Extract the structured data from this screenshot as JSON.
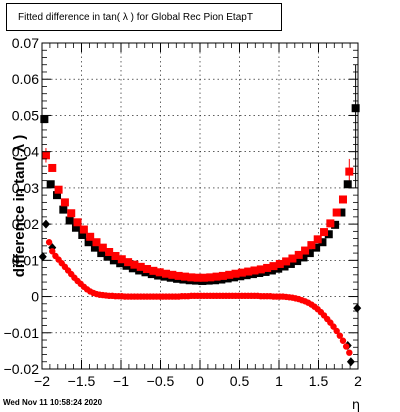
{
  "chart_data": {
    "type": "scatter",
    "title": "Fitted difference in tan( λ ) for Global Rec Pion EtapT",
    "xlabel": "η",
    "ylabel": "difference in tan( λ )",
    "xlim": [
      -2,
      2
    ],
    "ylim": [
      -0.02,
      0.07
    ],
    "x_ticks": [
      -2,
      -1.5,
      -1,
      -0.5,
      0,
      0.5,
      1,
      1.5,
      2
    ],
    "x_tick_labels": [
      "−2",
      "−1.5",
      "−1",
      "−0.5",
      "0",
      "0.5",
      "1",
      "1.5",
      "2"
    ],
    "y_ticks": [
      -0.02,
      -0.01,
      0,
      0.01,
      0.02,
      0.03,
      0.04,
      0.05,
      0.06,
      0.07
    ],
    "y_tick_labels": [
      "−0.02",
      "−0.01",
      "0",
      "0.01",
      "0.02",
      "0.03",
      "0.04",
      "0.05",
      "0.06",
      "0.07"
    ],
    "grid": true,
    "series": [
      {
        "marker": "square",
        "color": "#000000",
        "x": [
          -1.97,
          -1.89,
          -1.81,
          -1.73,
          -1.65,
          -1.57,
          -1.49,
          -1.41,
          -1.33,
          -1.25,
          -1.17,
          -1.09,
          -1.01,
          -0.93,
          -0.85,
          -0.77,
          -0.69,
          -0.61,
          -0.53,
          -0.45,
          -0.37,
          -0.29,
          -0.21,
          -0.13,
          -0.05,
          0.03,
          0.11,
          0.19,
          0.27,
          0.35,
          0.43,
          0.51,
          0.59,
          0.67,
          0.75,
          0.83,
          0.91,
          0.99,
          1.07,
          1.15,
          1.23,
          1.31,
          1.39,
          1.47,
          1.55,
          1.63,
          1.71,
          1.79,
          1.87,
          1.97
        ],
        "y": [
          0.049,
          0.031,
          0.028,
          0.024,
          0.021,
          0.019,
          0.017,
          0.015,
          0.0135,
          0.012,
          0.011,
          0.01,
          0.0092,
          0.0085,
          0.0078,
          0.0072,
          0.0067,
          0.0062,
          0.0058,
          0.0055,
          0.0052,
          0.0049,
          0.0047,
          0.0045,
          0.0044,
          0.0043,
          0.0044,
          0.0045,
          0.0047,
          0.005,
          0.0053,
          0.0056,
          0.0059,
          0.0062,
          0.0065,
          0.0068,
          0.0072,
          0.0077,
          0.0083,
          0.009,
          0.0098,
          0.0108,
          0.012,
          0.0135,
          0.015,
          0.0172,
          0.0198,
          0.0232,
          0.031,
          0.052
        ]
      },
      {
        "marker": "square",
        "color": "#ff0000",
        "x": [
          -1.95,
          -1.87,
          -1.79,
          -1.71,
          -1.63,
          -1.55,
          -1.47,
          -1.39,
          -1.31,
          -1.23,
          -1.15,
          -1.07,
          -0.99,
          -0.91,
          -0.83,
          -0.75,
          -0.67,
          -0.59,
          -0.51,
          -0.43,
          -0.35,
          -0.27,
          -0.19,
          -0.11,
          -0.03,
          0.05,
          0.13,
          0.21,
          0.29,
          0.37,
          0.45,
          0.53,
          0.61,
          0.69,
          0.77,
          0.85,
          0.93,
          1.01,
          1.09,
          1.17,
          1.25,
          1.33,
          1.41,
          1.49,
          1.57,
          1.65,
          1.73,
          1.81,
          1.89
        ],
        "y": [
          0.039,
          0.0355,
          0.0295,
          0.026,
          0.023,
          0.0205,
          0.0185,
          0.0165,
          0.015,
          0.0135,
          0.0123,
          0.0112,
          0.0103,
          0.0095,
          0.0088,
          0.0082,
          0.0076,
          0.0071,
          0.0067,
          0.0063,
          0.006,
          0.0057,
          0.0055,
          0.0053,
          0.0052,
          0.0052,
          0.0053,
          0.0055,
          0.0057,
          0.006,
          0.0063,
          0.0066,
          0.0069,
          0.0072,
          0.0075,
          0.0079,
          0.0084,
          0.009,
          0.0097,
          0.0105,
          0.0115,
          0.0127,
          0.0142,
          0.0158,
          0.0178,
          0.0202,
          0.0232,
          0.0268,
          0.0345
        ]
      },
      {
        "marker": "diamond",
        "color": "#000000",
        "x": [
          -1.99,
          -1.95,
          -1.87,
          1.87,
          1.91,
          1.99
        ],
        "y": [
          0.011,
          0.02,
          0.0135,
          -0.0135,
          -0.018,
          -0.0032
        ]
      },
      {
        "marker": "circle",
        "color": "#ff0000",
        "x": [
          -1.91,
          -1.87,
          -1.83,
          -1.79,
          -1.75,
          -1.71,
          -1.67,
          -1.63,
          -1.59,
          -1.55,
          -1.51,
          -1.47,
          -1.43,
          -1.39,
          -1.35,
          -1.31,
          -1.27,
          -1.23,
          -1.19,
          -1.15,
          -1.11,
          -1.07,
          -1.03,
          -0.99,
          -0.95,
          -0.91,
          -0.87,
          -0.83,
          -0.79,
          -0.75,
          -0.71,
          -0.67,
          -0.63,
          -0.59,
          -0.55,
          -0.51,
          -0.47,
          -0.43,
          -0.39,
          -0.35,
          -0.31,
          -0.27,
          -0.23,
          -0.19,
          -0.15,
          -0.11,
          -0.07,
          -0.03,
          0.01,
          0.05,
          0.09,
          0.13,
          0.17,
          0.21,
          0.25,
          0.29,
          0.33,
          0.37,
          0.41,
          0.45,
          0.49,
          0.53,
          0.57,
          0.61,
          0.65,
          0.69,
          0.73,
          0.77,
          0.81,
          0.85,
          0.89,
          0.93,
          0.97,
          1.01,
          1.05,
          1.09,
          1.13,
          1.17,
          1.21,
          1.25,
          1.29,
          1.33,
          1.37,
          1.41,
          1.45,
          1.49,
          1.53,
          1.57,
          1.61,
          1.65,
          1.69,
          1.73,
          1.77,
          1.81,
          1.85,
          1.89
        ],
        "y": [
          0.015,
          0.0125,
          0.0112,
          0.0102,
          0.0092,
          0.0082,
          0.0072,
          0.0062,
          0.0052,
          0.0043,
          0.0035,
          0.0027,
          0.002,
          0.0014,
          0.001,
          0.0007,
          0.0005,
          0.0004,
          0.0003,
          0.0002,
          0.0002,
          0.0001,
          0.0001,
          0.0001,
          0.0,
          0.0,
          0.0,
          0.0,
          0.0,
          0.0,
          0.0,
          0.0,
          0.0,
          0.0,
          0.0,
          0.0,
          0.0,
          0.0,
          0.0,
          0.0,
          0.0,
          0.0,
          0.0001,
          0.0001,
          0.0001,
          0.0002,
          0.0002,
          0.0002,
          0.0002,
          0.0002,
          0.0002,
          0.0002,
          0.0002,
          0.0002,
          0.0002,
          0.0002,
          0.0002,
          0.0002,
          0.0002,
          0.0002,
          0.0002,
          0.0002,
          0.0002,
          0.0002,
          0.0002,
          0.0002,
          0.0002,
          0.0001,
          0.0001,
          0.0001,
          0.0001,
          0.0,
          0.0,
          0.0,
          0.0,
          -0.0001,
          -0.0002,
          -0.0003,
          -0.0005,
          -0.0007,
          -0.001,
          -0.0013,
          -0.0017,
          -0.0022,
          -0.0028,
          -0.0035,
          -0.0043,
          -0.0052,
          -0.0062,
          -0.0072,
          -0.0083,
          -0.0095,
          -0.0108,
          -0.0122,
          -0.0138,
          -0.0155
        ]
      }
    ],
    "error_bars": [
      {
        "x": 1.97,
        "y_low": 0.03,
        "y_high": 0.064,
        "color": "#000000"
      },
      {
        "x": 1.89,
        "y_low": 0.031,
        "y_high": 0.038,
        "color": "#ff0000"
      },
      {
        "x": -1.95,
        "y_low": 0.037,
        "y_high": 0.041,
        "color": "#ff0000"
      }
    ]
  },
  "footer": {
    "timestamp": "Wed Nov 11 10:58:24 2020"
  }
}
